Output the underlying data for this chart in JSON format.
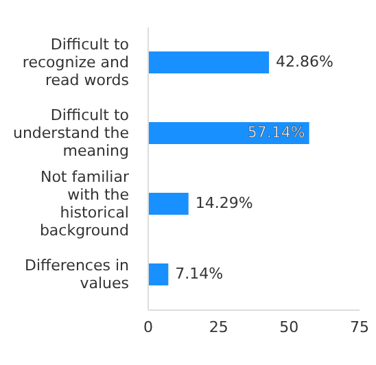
{
  "chart_data": {
    "type": "bar",
    "orientation": "horizontal",
    "categories": [
      "Difficult to recognize and read words",
      "Difficult to understand the meaning",
      "Not familiar with the historical background",
      "Differences in values"
    ],
    "values": [
      42.86,
      57.14,
      14.29,
      7.14
    ],
    "value_labels": [
      "42.86%",
      "57.14%",
      "14.29%",
      "7.14%"
    ],
    "color": "#1890ff",
    "xlim": [
      0,
      75
    ],
    "xticks": [
      0,
      25,
      50,
      75
    ],
    "grid": false
  }
}
